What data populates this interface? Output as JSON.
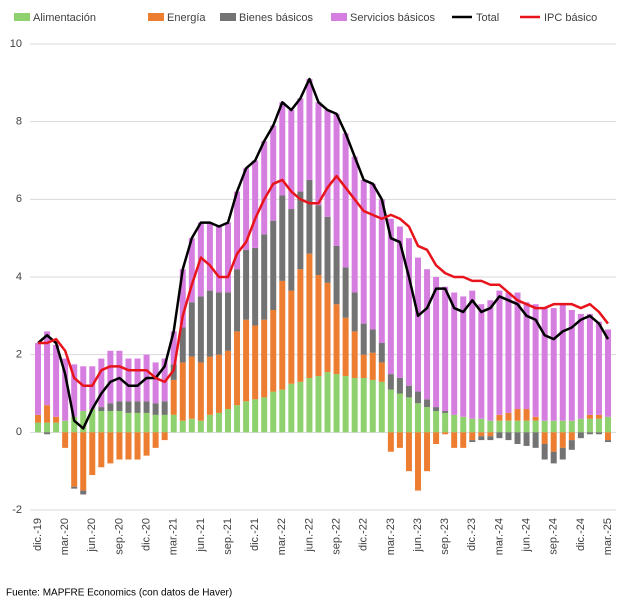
{
  "chart_data": {
    "type": "bar",
    "stacked": true,
    "categories": [
      "dic.-19",
      null,
      null,
      "mar.-20",
      null,
      null,
      "jun.-20",
      null,
      null,
      "sep.-20",
      null,
      null,
      "dic.-20",
      null,
      null,
      "mar.-21",
      null,
      null,
      "jun.-21",
      null,
      null,
      "sep.-21",
      null,
      null,
      "dic.-21",
      null,
      null,
      "mar.-22",
      null,
      null,
      "jun.-22",
      null,
      null,
      "sep.-22",
      null,
      null,
      "dic.-22",
      null,
      null,
      "mar.-23",
      null,
      null,
      "jun.-23",
      null,
      null,
      "sep.-23",
      null,
      null,
      "dic.-23",
      null,
      null,
      "mar.-24",
      null,
      null,
      "jun.-24",
      null,
      null,
      "sep.-24",
      null,
      null,
      "dic.-24",
      null,
      null,
      "mar.-25"
    ],
    "series": [
      {
        "name": "Alimentación",
        "type": "bar",
        "color": "#8fd16f",
        "values": [
          0.25,
          0.25,
          0.25,
          0.3,
          0.4,
          0.55,
          0.6,
          0.55,
          0.55,
          0.55,
          0.5,
          0.5,
          0.5,
          0.45,
          0.45,
          0.45,
          0.3,
          0.35,
          0.3,
          0.45,
          0.5,
          0.6,
          0.7,
          0.8,
          0.85,
          0.9,
          1.05,
          1.1,
          1.25,
          1.3,
          1.4,
          1.45,
          1.55,
          1.5,
          1.45,
          1.4,
          1.4,
          1.35,
          1.3,
          1.1,
          1.0,
          0.9,
          0.75,
          0.65,
          0.55,
          0.5,
          0.45,
          0.4,
          0.35,
          0.35,
          0.3,
          0.3,
          0.3,
          0.3,
          0.3,
          0.3,
          0.3,
          0.3,
          0.3,
          0.3,
          0.35,
          0.35,
          0.35,
          0.4
        ]
      },
      {
        "name": "Energía",
        "type": "bar",
        "color": "#ed7d31",
        "values": [
          0.2,
          0.45,
          0.15,
          -0.4,
          -1.4,
          -1.5,
          -1.1,
          -0.9,
          -0.8,
          -0.7,
          -0.7,
          -0.7,
          -0.6,
          -0.4,
          -0.2,
          0.9,
          1.5,
          1.6,
          1.5,
          1.5,
          1.5,
          1.5,
          1.9,
          2.1,
          1.9,
          2.0,
          2.1,
          2.8,
          2.4,
          2.9,
          3.2,
          2.6,
          2.3,
          1.8,
          1.5,
          1.2,
          0.6,
          0.7,
          0.5,
          -0.5,
          -0.4,
          -1.0,
          -1.5,
          -1.0,
          -0.3,
          -0.05,
          -0.4,
          -0.4,
          -0.2,
          -0.1,
          -0.1,
          0.15,
          0.2,
          0.3,
          0.3,
          0.1,
          -0.3,
          -0.5,
          -0.4,
          -0.2,
          0.0,
          0.1,
          0.1,
          -0.2
        ]
      },
      {
        "name": "Bienes básicos",
        "type": "bar",
        "color": "#737373",
        "values": [
          0.0,
          -0.05,
          0.0,
          0.0,
          -0.05,
          -0.1,
          0.0,
          0.1,
          0.2,
          0.25,
          0.3,
          0.3,
          0.3,
          0.3,
          0.35,
          0.4,
          0.9,
          1.4,
          1.7,
          1.7,
          1.6,
          1.5,
          1.6,
          1.8,
          2.0,
          2.2,
          2.3,
          2.2,
          2.1,
          2.0,
          1.9,
          1.8,
          1.7,
          1.5,
          1.3,
          1.0,
          0.8,
          0.6,
          0.5,
          0.4,
          0.4,
          0.3,
          0.3,
          0.2,
          0.1,
          0.05,
          0.0,
          0.0,
          -0.05,
          -0.1,
          -0.1,
          -0.15,
          -0.2,
          -0.3,
          -0.35,
          -0.4,
          -0.4,
          -0.3,
          -0.3,
          -0.25,
          -0.15,
          -0.05,
          -0.05,
          -0.05
        ]
      },
      {
        "name": "Servicios básicos",
        "type": "bar",
        "color": "#d67ee0",
        "values": [
          1.85,
          1.9,
          1.85,
          1.6,
          1.35,
          1.15,
          1.1,
          1.25,
          1.35,
          1.3,
          1.1,
          1.1,
          1.2,
          1.05,
          1.1,
          0.85,
          1.5,
          1.65,
          1.9,
          1.75,
          1.7,
          1.8,
          2.0,
          2.1,
          2.25,
          2.4,
          2.45,
          2.4,
          2.55,
          2.4,
          2.6,
          2.65,
          2.75,
          3.4,
          3.45,
          3.5,
          3.7,
          3.75,
          3.7,
          4.0,
          3.9,
          3.8,
          3.45,
          3.35,
          3.35,
          3.2,
          3.15,
          3.1,
          3.3,
          2.95,
          3.1,
          3.2,
          3.1,
          3.0,
          2.75,
          2.9,
          2.9,
          2.9,
          3.0,
          2.85,
          2.7,
          2.6,
          2.4,
          2.25
        ]
      },
      {
        "name": "Total",
        "type": "line",
        "color": "#000000",
        "values": [
          2.3,
          2.5,
          2.3,
          1.5,
          0.3,
          0.1,
          0.6,
          1.0,
          1.3,
          1.4,
          1.2,
          1.2,
          1.4,
          1.4,
          1.7,
          2.6,
          4.2,
          5.0,
          5.4,
          5.4,
          5.3,
          5.4,
          6.2,
          6.8,
          7.0,
          7.5,
          7.9,
          8.5,
          8.3,
          8.6,
          9.1,
          8.5,
          8.3,
          8.2,
          7.7,
          7.1,
          6.5,
          6.4,
          6.0,
          5.0,
          4.9,
          4.0,
          3.0,
          3.2,
          3.7,
          3.7,
          3.2,
          3.1,
          3.4,
          3.1,
          3.2,
          3.5,
          3.4,
          3.3,
          3.0,
          2.9,
          2.5,
          2.4,
          2.6,
          2.7,
          2.9,
          3.0,
          2.8,
          2.4
        ]
      },
      {
        "name": "IPC básico",
        "type": "line",
        "color": "#e8141c",
        "values": [
          2.3,
          2.3,
          2.4,
          2.1,
          1.4,
          1.2,
          1.2,
          1.6,
          1.7,
          1.7,
          1.6,
          1.6,
          1.6,
          1.4,
          1.3,
          1.6,
          3.0,
          3.8,
          4.5,
          4.3,
          4.0,
          4.0,
          4.6,
          4.9,
          5.5,
          6.0,
          6.4,
          6.5,
          6.2,
          6.0,
          5.9,
          5.9,
          6.3,
          6.6,
          6.3,
          6.0,
          5.7,
          5.6,
          5.5,
          5.6,
          5.5,
          5.3,
          4.8,
          4.7,
          4.3,
          4.1,
          4.0,
          4.0,
          3.9,
          3.9,
          3.8,
          3.8,
          3.6,
          3.4,
          3.3,
          3.2,
          3.2,
          3.3,
          3.3,
          3.3,
          3.2,
          3.3,
          3.1,
          2.8
        ]
      }
    ],
    "ylim": [
      -2,
      10
    ],
    "yticks": [
      -2,
      0,
      2,
      4,
      6,
      8,
      10
    ],
    "grid": true,
    "legend": "top",
    "source": "Fuente: MAPFRE Economics (con datos de Haver)"
  }
}
